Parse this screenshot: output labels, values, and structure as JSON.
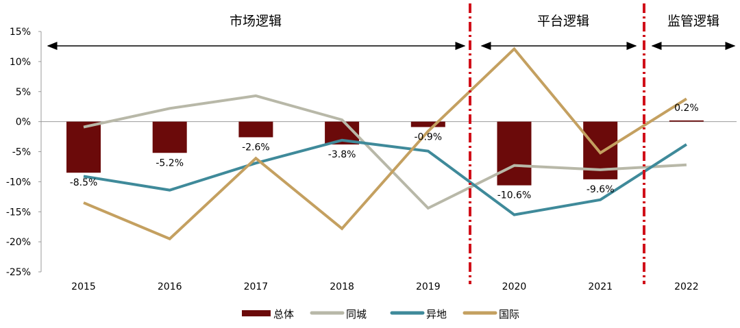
{
  "chart_data": {
    "type": "bar+line",
    "categories": [
      "2015",
      "2016",
      "2017",
      "2018",
      "2019",
      "2020",
      "2021",
      "2022"
    ],
    "ylim": [
      -25,
      15
    ],
    "yticks": [
      "-25%",
      "-20%",
      "-15%",
      "-10%",
      "-5%",
      "0%",
      "5%",
      "10%",
      "15%"
    ],
    "ytick_values": [
      -25,
      -20,
      -15,
      -10,
      -5,
      0,
      5,
      10,
      15
    ],
    "grid": false,
    "legend_position": "bottom",
    "series": [
      {
        "name": "总体",
        "type": "bar",
        "color": "#6b0a0a",
        "values": [
          -8.5,
          -5.2,
          -2.6,
          -3.8,
          -0.9,
          -10.6,
          -9.6,
          0.2
        ],
        "labels": [
          "-8.5%",
          "-5.2%",
          "-2.6%",
          "-3.8%",
          "-0.9%",
          "-10.6%",
          "-9.6%",
          "0.2%"
        ]
      },
      {
        "name": "同城",
        "type": "line",
        "color": "#b8b8a8",
        "values": [
          -0.9,
          2.2,
          4.3,
          0.3,
          -14.4,
          -7.3,
          -8.0,
          -7.2
        ]
      },
      {
        "name": "异地",
        "type": "line",
        "color": "#3f8a9a",
        "values": [
          -9.1,
          -11.4,
          -6.9,
          -3.1,
          -4.9,
          -15.5,
          -13.0,
          -3.8
        ]
      },
      {
        "name": "国际",
        "type": "line",
        "color": "#c4a060",
        "values": [
          -13.5,
          -19.5,
          -6.1,
          -17.8,
          -1.6,
          12.1,
          -5.2,
          3.8
        ]
      }
    ],
    "annotations": [
      {
        "text": "市场逻辑",
        "from": "2015",
        "to": "2019"
      },
      {
        "text": "平台逻辑",
        "from": "2020",
        "to": "2021"
      },
      {
        "text": "监管逻辑",
        "from": "2022",
        "to": "2022"
      }
    ],
    "divider_color": "#d0101a"
  }
}
